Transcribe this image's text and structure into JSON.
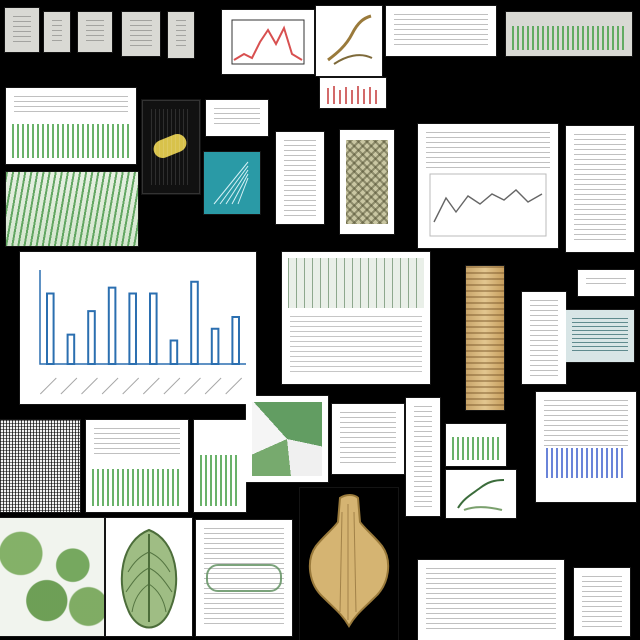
{
  "image": {
    "description": "",
    "tiles": [
      {
        "id": "scan-grid-1"
      },
      {
        "id": "scan-grid-2"
      },
      {
        "id": "plant-1"
      },
      {
        "id": "scan-grid-3"
      },
      {
        "id": "line-plot"
      },
      {
        "id": "dark-panel"
      },
      {
        "id": "teal-panel"
      },
      {
        "id": "bar-chart-main"
      },
      {
        "id": "tan-column"
      },
      {
        "id": "green-plants"
      },
      {
        "id": "leaf-illustration"
      },
      {
        "id": "tuber-illustration"
      },
      {
        "id": "text-panels"
      }
    ]
  },
  "chart_data": {
    "type": "bar",
    "categories": [
      "",
      "",
      "",
      "",
      "",
      "",
      "",
      "",
      "",
      ""
    ],
    "values": [
      12,
      5,
      9,
      13,
      12,
      12,
      4,
      14,
      6,
      8
    ],
    "ylim": [
      0,
      16
    ],
    "title": "",
    "xlabel": "",
    "ylabel": ""
  }
}
